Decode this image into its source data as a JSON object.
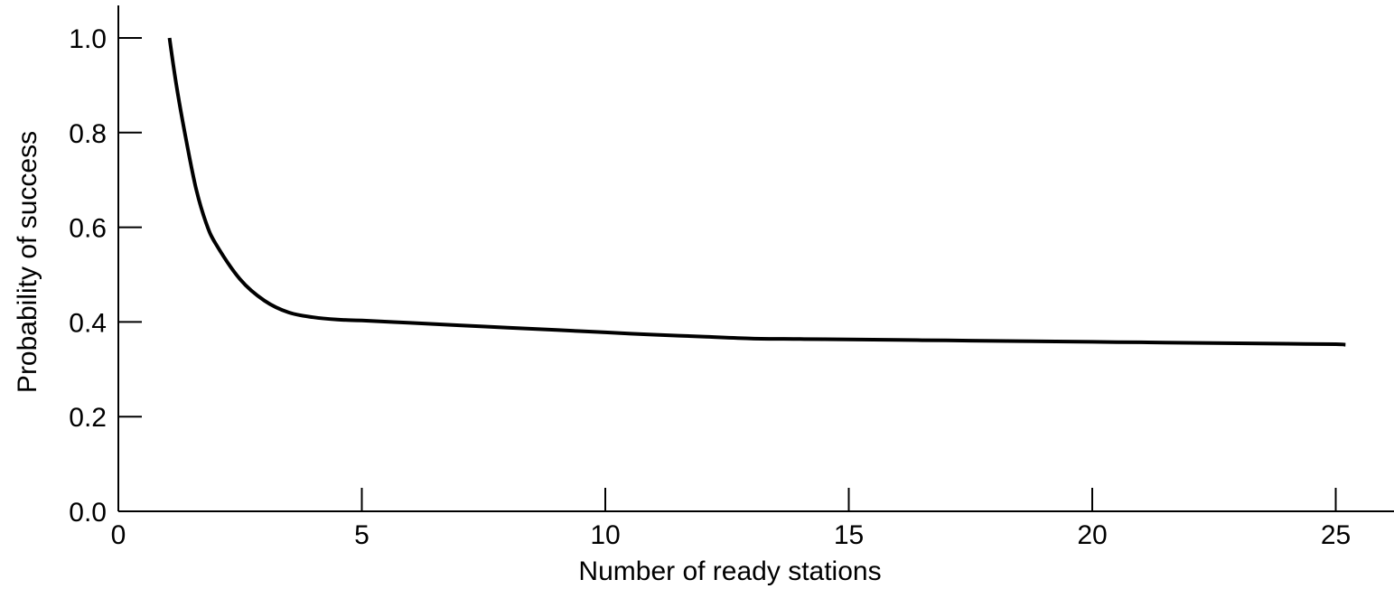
{
  "chart_data": {
    "type": "line",
    "title": "",
    "xlabel": "Number of ready stations",
    "ylabel": "Probability of success",
    "xlim": [
      0,
      26.2
    ],
    "ylim": [
      0,
      1.05
    ],
    "x_ticks": [
      0,
      5,
      10,
      15,
      20,
      25
    ],
    "x_tick_labels": [
      "0",
      "5",
      "10",
      "15",
      "20",
      "25"
    ],
    "y_ticks": [
      0.0,
      0.2,
      0.4,
      0.6,
      0.8,
      1.0
    ],
    "y_tick_labels": [
      "0.0",
      "0.2",
      "0.4",
      "0.6",
      "0.8",
      "1.0"
    ],
    "grid": false,
    "legend": "none",
    "line_color": "#000000",
    "series": [
      {
        "x": [
          1.05,
          1.2,
          1.4,
          1.6,
          1.8,
          2.0,
          2.5,
          3.0,
          3.5,
          4.0,
          4.5,
          5,
          6,
          7,
          8,
          9,
          10,
          11,
          12,
          13,
          14,
          15,
          16,
          17,
          18,
          19,
          20,
          21,
          22,
          23,
          24,
          25,
          25.2
        ],
        "y": [
          1.0,
          0.895,
          0.78,
          0.68,
          0.61,
          0.565,
          0.49,
          0.445,
          0.42,
          0.41,
          0.405,
          0.403,
          0.398,
          0.393,
          0.388,
          0.383,
          0.378,
          0.373,
          0.369,
          0.365,
          0.364,
          0.363,
          0.362,
          0.361,
          0.36,
          0.359,
          0.358,
          0.357,
          0.356,
          0.355,
          0.354,
          0.353,
          0.352
        ]
      }
    ]
  }
}
